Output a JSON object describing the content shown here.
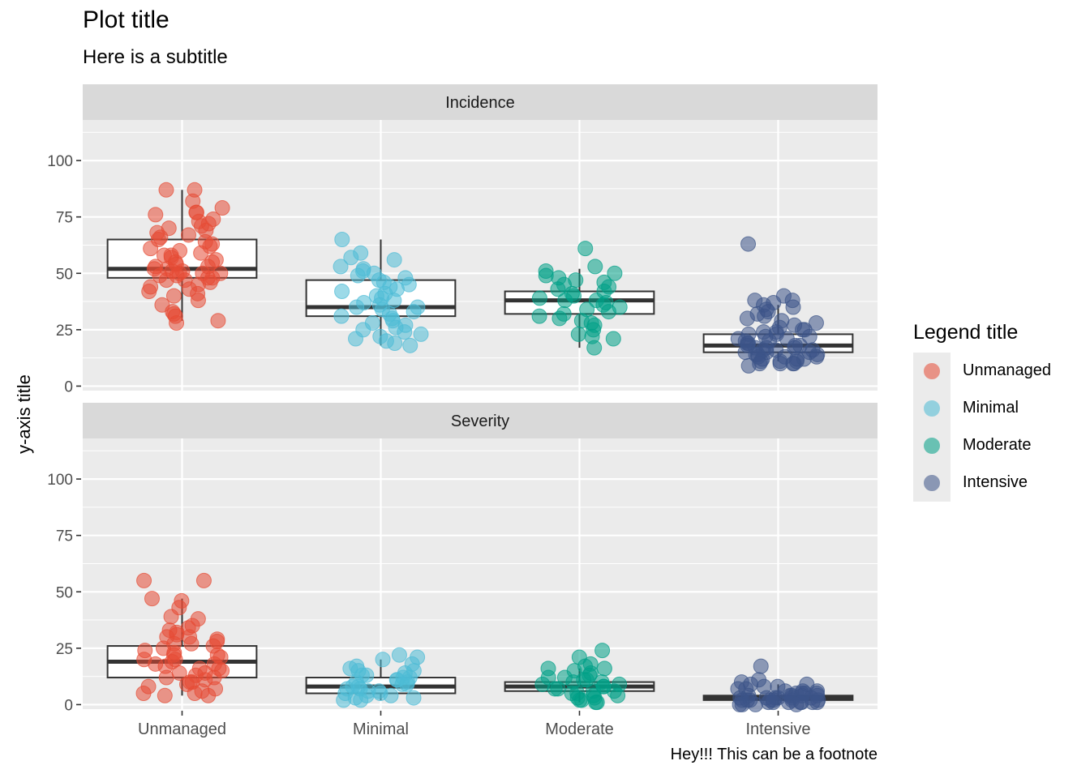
{
  "chart_data": {
    "type": "box+jitter",
    "title": "Plot title",
    "subtitle": "Here is a subtitle",
    "ylabel": "y-axis title",
    "xlabel": "",
    "caption": "Hey!!! This can be a footnote",
    "categories": [
      "Unmanaged",
      "Minimal",
      "Moderate",
      "Intensive"
    ],
    "ylim": [
      -2,
      118
    ],
    "yticks": [
      0,
      25,
      50,
      75,
      100
    ],
    "grid": true,
    "legend": {
      "title": "Legend title",
      "position": "right",
      "items": [
        {
          "label": "Unmanaged",
          "color": "#e64b35"
        },
        {
          "label": "Minimal",
          "color": "#4dbbd5"
        },
        {
          "label": "Moderate",
          "color": "#00a087"
        },
        {
          "label": "Intensive",
          "color": "#3c5488"
        }
      ]
    },
    "facets": [
      {
        "label": "Incidence",
        "boxes": [
          {
            "category": "Unmanaged",
            "min": 29,
            "q1": 48,
            "median": 52,
            "q3": 65,
            "max": 87
          },
          {
            "category": "Minimal",
            "min": 18,
            "q1": 31,
            "median": 35,
            "q3": 47,
            "max": 65
          },
          {
            "category": "Moderate",
            "min": 17,
            "q1": 32,
            "median": 38,
            "q3": 42,
            "max": 52
          },
          {
            "category": "Intensive",
            "min": 11,
            "q1": 15,
            "median": 18,
            "q3": 23,
            "max": 36
          }
        ],
        "points": [
          {
            "category": "Unmanaged",
            "values": [
              87,
              87,
              82,
              79,
              77,
              77,
              76,
              74,
              73,
              72,
              71,
              70,
              69,
              68,
              67,
              66,
              65,
              64,
              63,
              62,
              61,
              60,
              59,
              58,
              58,
              57,
              56,
              55,
              55,
              54,
              53,
              53,
              52,
              52,
              51,
              51,
              50,
              50,
              50,
              49,
              49,
              48,
              48,
              47,
              47,
              46,
              45,
              44,
              43,
              42,
              41,
              40,
              38,
              36,
              33,
              32,
              31,
              29,
              28
            ]
          },
          {
            "category": "Minimal",
            "values": [
              65,
              59,
              57,
              56,
              53,
              52,
              51,
              50,
              49,
              48,
              47,
              46,
              45,
              44,
              43,
              42,
              41,
              40,
              39,
              38,
              37,
              36,
              35,
              35,
              34,
              33,
              32,
              31,
              30,
              29,
              28,
              27,
              26,
              25,
              24,
              23,
              22,
              21,
              20,
              19,
              18
            ]
          },
          {
            "category": "Moderate",
            "values": [
              61,
              53,
              51,
              50,
              49,
              48,
              47,
              46,
              45,
              44,
              43,
              42,
              41,
              40,
              39,
              38,
              38,
              37,
              36,
              35,
              34,
              33,
              32,
              31,
              30,
              29,
              28,
              27,
              25,
              23,
              22,
              21,
              17
            ]
          },
          {
            "category": "Intensive",
            "values": [
              63,
              40,
              38,
              38,
              37,
              36,
              35,
              34,
              33,
              32,
              31,
              30,
              29,
              28,
              27,
              26,
              25,
              25,
              24,
              24,
              23,
              23,
              22,
              22,
              21,
              21,
              20,
              20,
              19,
              19,
              18,
              18,
              18,
              17,
              17,
              17,
              16,
              16,
              16,
              15,
              15,
              15,
              14,
              14,
              14,
              13,
              13,
              13,
              12,
              12,
              12,
              11,
              11,
              11,
              10,
              10,
              10,
              10,
              9
            ]
          }
        ]
      },
      {
        "label": "Severity",
        "boxes": [
          {
            "category": "Unmanaged",
            "min": 4,
            "q1": 12,
            "median": 19,
            "q3": 26,
            "max": 47
          },
          {
            "category": "Minimal",
            "min": 2,
            "q1": 5,
            "median": 8,
            "q3": 12,
            "max": 20
          },
          {
            "category": "Moderate",
            "min": 1,
            "q1": 6,
            "median": 8,
            "q3": 10,
            "max": 16
          },
          {
            "category": "Intensive",
            "min": 0,
            "q1": 2,
            "median": 3,
            "q3": 4,
            "max": 9
          }
        ],
        "points": [
          {
            "category": "Unmanaged",
            "values": [
              55,
              55,
              47,
              46,
              43,
              39,
              38,
              35,
              34,
              33,
              32,
              31,
              30,
              30,
              29,
              28,
              27,
              27,
              26,
              25,
              24,
              23,
              22,
              22,
              21,
              20,
              20,
              19,
              18,
              18,
              17,
              16,
              16,
              15,
              14,
              14,
              13,
              12,
              12,
              11,
              10,
              10,
              9,
              8,
              7,
              6,
              5,
              5,
              4,
              4
            ]
          },
          {
            "category": "Minimal",
            "values": [
              22,
              21,
              20,
              18,
              17,
              16,
              15,
              15,
              14,
              13,
              13,
              12,
              12,
              11,
              11,
              10,
              10,
              9,
              9,
              8,
              8,
              7,
              7,
              6,
              6,
              5,
              5,
              4,
              4,
              3,
              3,
              2,
              2
            ]
          },
          {
            "category": "Moderate",
            "values": [
              24,
              21,
              18,
              17,
              16,
              16,
              15,
              14,
              13,
              12,
              12,
              11,
              11,
              10,
              10,
              9,
              9,
              8,
              8,
              7,
              7,
              6,
              6,
              5,
              5,
              4,
              4,
              3,
              3,
              2,
              2,
              1,
              1
            ]
          },
          {
            "category": "Intensive",
            "values": [
              17,
              11,
              10,
              9,
              9,
              8,
              8,
              7,
              7,
              6,
              6,
              6,
              5,
              5,
              5,
              5,
              4,
              4,
              4,
              4,
              4,
              3,
              3,
              3,
              3,
              3,
              3,
              2,
              2,
              2,
              2,
              2,
              2,
              2,
              1,
              1,
              1,
              1,
              1,
              1,
              1,
              0,
              0,
              0,
              0
            ]
          }
        ]
      }
    ]
  }
}
